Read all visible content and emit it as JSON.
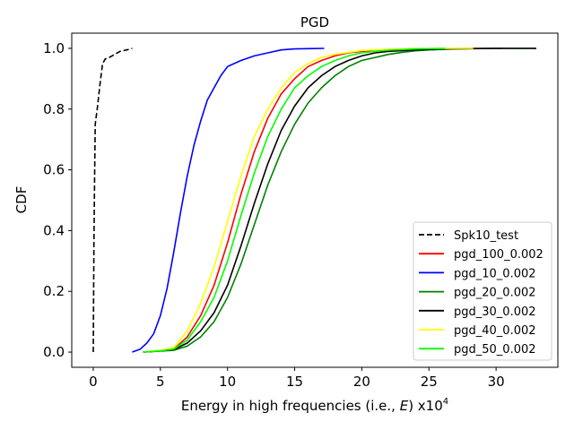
{
  "chart_data": {
    "type": "line",
    "title": "PGD",
    "xlabel_prefix": "Energy in high frequencies (i.e., ",
    "xlabel_var": "E",
    "xlabel_suffix": ") x10",
    "xlabel_exp": "4",
    "ylabel": "CDF",
    "xlim": [
      -1.6,
      34.6
    ],
    "ylim": [
      -0.05,
      1.05
    ],
    "xticks": [
      0,
      5,
      10,
      15,
      20,
      25,
      30
    ],
    "yticks": [
      0.0,
      0.2,
      0.4,
      0.6,
      0.8,
      1.0
    ],
    "xtick_labels": [
      "0",
      "5",
      "10",
      "15",
      "20",
      "25",
      "30"
    ],
    "ytick_labels": [
      "0.0",
      "0.2",
      "0.4",
      "0.6",
      "0.8",
      "1.0"
    ],
    "grid": false,
    "legend_position": "lower-right",
    "series": [
      {
        "name": "Spk10_test",
        "color": "#000000",
        "dashed": true,
        "x": [
          0.0,
          0.05,
          0.1,
          0.15,
          0.2,
          0.3,
          0.5,
          0.7,
          0.9,
          1.2,
          1.6,
          2.0,
          2.5,
          2.9
        ],
        "y": [
          0.0,
          0.35,
          0.58,
          0.75,
          0.77,
          0.8,
          0.88,
          0.95,
          0.965,
          0.97,
          0.98,
          0.99,
          0.995,
          1.0
        ]
      },
      {
        "name": "pgd_100_0.002",
        "color": "#ff0000",
        "dashed": false,
        "x": [
          3.7,
          5,
          6,
          7,
          8,
          9,
          10,
          11,
          12,
          13,
          14,
          15,
          16,
          17,
          18,
          19,
          20,
          21,
          22,
          24,
          26,
          28,
          30.5
        ],
        "y": [
          0.0,
          0.005,
          0.01,
          0.05,
          0.12,
          0.22,
          0.36,
          0.52,
          0.66,
          0.77,
          0.85,
          0.9,
          0.94,
          0.96,
          0.975,
          0.985,
          0.99,
          0.993,
          0.996,
          0.998,
          0.999,
          1.0,
          1.0
        ]
      },
      {
        "name": "pgd_10_0.002",
        "color": "#0000ff",
        "dashed": false,
        "x": [
          2.9,
          3.5,
          4,
          4.5,
          5,
          5.5,
          6,
          6.5,
          7,
          7.5,
          8,
          8.5,
          9,
          9.5,
          10,
          11,
          12,
          13,
          14,
          15,
          16,
          17.2
        ],
        "y": [
          0.0,
          0.01,
          0.03,
          0.06,
          0.12,
          0.21,
          0.33,
          0.46,
          0.58,
          0.68,
          0.76,
          0.83,
          0.87,
          0.91,
          0.94,
          0.96,
          0.975,
          0.985,
          0.995,
          0.998,
          0.999,
          1.0
        ]
      },
      {
        "name": "pgd_20_0.002",
        "color": "#008000",
        "dashed": false,
        "x": [
          3.7,
          5,
          6,
          7,
          8,
          9,
          10,
          11,
          12,
          13,
          14,
          15,
          16,
          17,
          18,
          19,
          20,
          21,
          22,
          23,
          24,
          25,
          27,
          30,
          33
        ],
        "y": [
          0.0,
          0.003,
          0.006,
          0.02,
          0.05,
          0.1,
          0.18,
          0.29,
          0.42,
          0.55,
          0.66,
          0.75,
          0.82,
          0.87,
          0.91,
          0.94,
          0.96,
          0.97,
          0.98,
          0.987,
          0.992,
          0.995,
          0.998,
          1.0,
          1.0
        ]
      },
      {
        "name": "pgd_30_0.002",
        "color": "#000000",
        "dashed": false,
        "x": [
          3.8,
          5,
          6,
          7,
          8,
          9,
          10,
          11,
          12,
          13,
          14,
          15,
          16,
          17,
          18,
          19,
          20,
          21,
          22,
          24,
          26,
          30,
          33
        ],
        "y": [
          0.0,
          0.004,
          0.008,
          0.03,
          0.07,
          0.13,
          0.22,
          0.35,
          0.49,
          0.62,
          0.73,
          0.81,
          0.87,
          0.91,
          0.94,
          0.96,
          0.975,
          0.985,
          0.99,
          0.995,
          0.998,
          1.0,
          1.0
        ]
      },
      {
        "name": "pgd_40_0.002",
        "color": "#ffff00",
        "dashed": false,
        "x": [
          3.7,
          5,
          6,
          7,
          8,
          9,
          10,
          11,
          12,
          13,
          14,
          15,
          16,
          17,
          18,
          19,
          20,
          22,
          24,
          26,
          28.3
        ],
        "y": [
          0.0,
          0.006,
          0.015,
          0.07,
          0.16,
          0.28,
          0.43,
          0.58,
          0.71,
          0.8,
          0.87,
          0.92,
          0.95,
          0.97,
          0.98,
          0.987,
          0.993,
          0.997,
          0.999,
          1.0,
          1.0
        ]
      },
      {
        "name": "pgd_50_0.002",
        "color": "#00ff00",
        "dashed": false,
        "x": [
          3.7,
          5,
          6,
          7,
          8,
          9,
          10,
          11,
          12,
          13,
          14,
          15,
          16,
          17,
          18,
          19,
          20,
          21,
          22,
          24,
          26.2
        ],
        "y": [
          0.0,
          0.004,
          0.01,
          0.04,
          0.1,
          0.18,
          0.3,
          0.45,
          0.59,
          0.71,
          0.8,
          0.87,
          0.91,
          0.94,
          0.96,
          0.975,
          0.985,
          0.99,
          0.994,
          0.998,
          1.0
        ]
      }
    ]
  }
}
